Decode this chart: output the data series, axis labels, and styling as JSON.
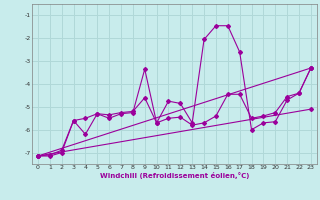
{
  "xlabel": "Windchill (Refroidissement éolien,°C)",
  "background_color": "#c8ecec",
  "grid_color": "#b0d8d8",
  "line_color": "#9b009b",
  "xlim": [
    -0.5,
    23.5
  ],
  "ylim": [
    -7.5,
    -0.5
  ],
  "yticks": [
    -7,
    -6,
    -5,
    -4,
    -3,
    -2,
    -1
  ],
  "xticks": [
    0,
    1,
    2,
    3,
    4,
    5,
    6,
    7,
    8,
    9,
    10,
    11,
    12,
    13,
    14,
    15,
    16,
    17,
    18,
    19,
    20,
    21,
    22,
    23
  ],
  "line1_x": [
    0,
    1,
    2,
    3,
    4,
    5,
    6,
    7,
    8,
    9,
    10,
    11,
    12,
    13,
    14,
    15,
    16,
    17,
    18,
    19,
    20,
    21,
    22,
    23
  ],
  "line1_y": [
    -7.15,
    -7.15,
    -7.0,
    -5.6,
    -6.2,
    -5.3,
    -5.5,
    -5.3,
    -5.25,
    -3.35,
    -5.7,
    -4.75,
    -4.85,
    -5.7,
    -2.05,
    -1.45,
    -1.45,
    -2.6,
    -6.0,
    -5.7,
    -5.65,
    -4.7,
    -4.4,
    -3.3
  ],
  "line2_x": [
    0,
    1,
    2,
    3,
    4,
    5,
    6,
    7,
    8,
    9,
    10,
    11,
    12,
    13,
    14,
    15,
    16,
    17,
    18,
    19,
    20,
    21,
    22,
    23
  ],
  "line2_y": [
    -7.15,
    -7.1,
    -6.9,
    -5.6,
    -5.5,
    -5.3,
    -5.35,
    -5.25,
    -5.2,
    -4.6,
    -5.7,
    -5.5,
    -5.45,
    -5.8,
    -5.7,
    -5.4,
    -4.45,
    -4.45,
    -5.5,
    -5.4,
    -5.25,
    -4.55,
    -4.4,
    -3.3
  ],
  "line3_x": [
    0,
    23
  ],
  "line3_y": [
    -7.15,
    -3.3
  ],
  "line4_x": [
    0,
    23
  ],
  "line4_y": [
    -7.15,
    -5.1
  ]
}
